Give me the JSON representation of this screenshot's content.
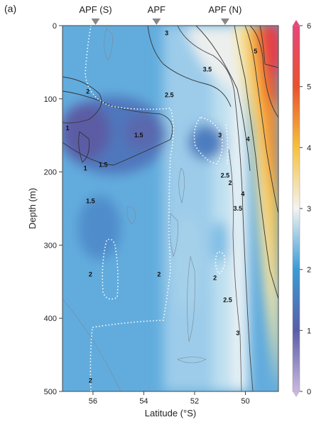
{
  "panel_label": "(a)",
  "chart_data": {
    "type": "heatmap",
    "title": "",
    "xlabel": "Latitude (°S)",
    "ylabel": "Depth (m)",
    "xlim": [
      57.2,
      48.7
    ],
    "ylim": [
      0,
      500
    ],
    "x_reversed": true,
    "y_reversed": true,
    "x_ticks": [
      56,
      54,
      52,
      50
    ],
    "y_ticks": [
      0,
      100,
      200,
      300,
      400,
      500
    ],
    "colorbar": {
      "min": 0,
      "max": 6,
      "ticks": [
        0,
        1,
        2,
        3,
        4,
        5,
        6
      ],
      "stops": [
        {
          "v": 0,
          "c": "#c9b8de"
        },
        {
          "v": 1,
          "c": "#5a5ea8"
        },
        {
          "v": 2,
          "c": "#3a9bd7"
        },
        {
          "v": 3,
          "c": "#f3f3f1"
        },
        {
          "v": 4,
          "c": "#f6c23e"
        },
        {
          "v": 5,
          "c": "#e8522e"
        },
        {
          "v": 6,
          "c": "#e6477a"
        }
      ]
    },
    "front_markers": [
      {
        "label": "APF (S)",
        "lat": 55.9
      },
      {
        "label": "APF",
        "lat": 53.5
      },
      {
        "label": "APF (N)",
        "lat": 50.8
      }
    ],
    "contour_labels": [
      {
        "text": "3",
        "lat": 53.1,
        "depth": 10
      },
      {
        "text": "3.5",
        "lat": 51.5,
        "depth": 60
      },
      {
        "text": "5",
        "lat": 49.6,
        "depth": 35
      },
      {
        "text": "2",
        "lat": 56.2,
        "depth": 90
      },
      {
        "text": "2.5",
        "lat": 53.0,
        "depth": 95
      },
      {
        "text": "1",
        "lat": 57.0,
        "depth": 140
      },
      {
        "text": "1.5",
        "lat": 54.2,
        "depth": 150
      },
      {
        "text": "3",
        "lat": 51.0,
        "depth": 150
      },
      {
        "text": "4",
        "lat": 49.9,
        "depth": 155
      },
      {
        "text": "1",
        "lat": 56.3,
        "depth": 195
      },
      {
        "text": "1.5",
        "lat": 55.6,
        "depth": 190
      },
      {
        "text": "1.5",
        "lat": 56.1,
        "depth": 240
      },
      {
        "text": "2",
        "lat": 50.6,
        "depth": 215
      },
      {
        "text": "2.5",
        "lat": 50.8,
        "depth": 205
      },
      {
        "text": "4",
        "lat": 50.1,
        "depth": 230
      },
      {
        "text": "3.5",
        "lat": 50.3,
        "depth": 250
      },
      {
        "text": "2",
        "lat": 56.1,
        "depth": 340
      },
      {
        "text": "2",
        "lat": 53.4,
        "depth": 340
      },
      {
        "text": "2",
        "lat": 51.2,
        "depth": 345
      },
      {
        "text": "2.5",
        "lat": 50.7,
        "depth": 375
      },
      {
        "text": "3",
        "lat": 50.3,
        "depth": 420
      },
      {
        "text": "2",
        "lat": 56.1,
        "depth": 485
      }
    ],
    "grid": false,
    "legend": "colorbar-right"
  }
}
